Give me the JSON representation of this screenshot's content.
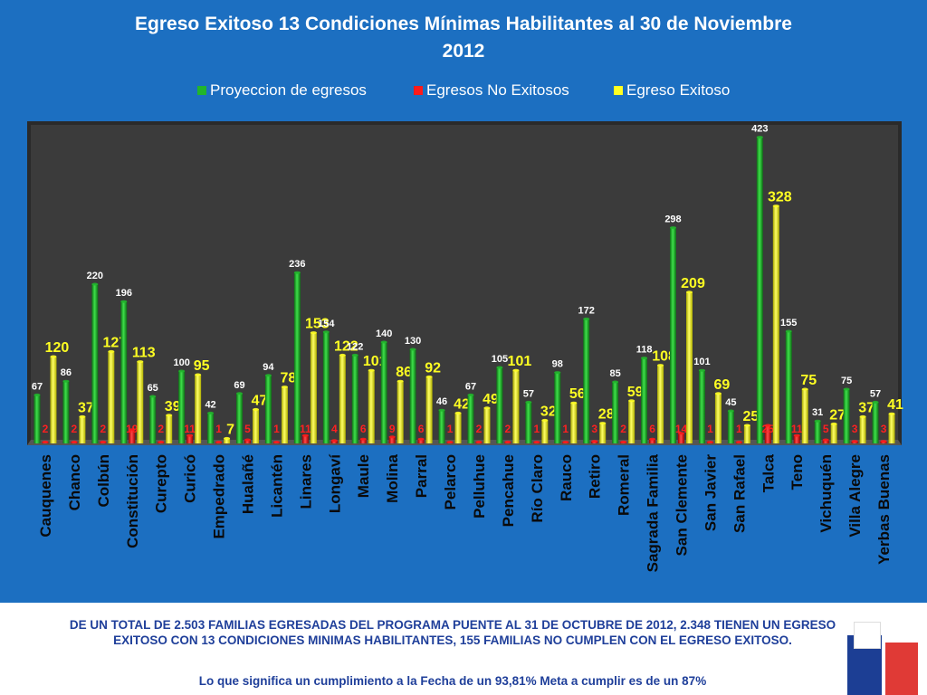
{
  "title_line1": "Egreso Exitoso 13 Condiciones Mínimas Habilitantes al 30 de Noviembre",
  "title_line2": "2012",
  "colors": {
    "background": "#1c6fc1",
    "plot": "#3a3a3a",
    "green": "#21b52c",
    "red": "#ff1a1a",
    "yellow": "#ffff22",
    "footer_text": "#1f3f9a"
  },
  "chart_data": {
    "type": "bar",
    "title": "Egreso Exitoso 13 Condiciones Mínimas Habilitantes al 30 de Noviembre 2012",
    "legend_position": "top",
    "ylim": [
      0,
      440
    ],
    "grid": false,
    "categories": [
      "Cauquenes",
      "Chanco",
      "Colbún",
      "Constitución",
      "Curepto",
      "Curicó",
      "Empedrado",
      "Hualañé",
      "Licantén",
      "Linares",
      "Longaví",
      "Maule",
      "Molina",
      "Parral",
      "Pelarco",
      "Pelluhue",
      "Pencahue",
      "Río Claro",
      "Rauco",
      "Retiro",
      "Romeral",
      "Sagrada Familia",
      "San Clemente",
      "San Javier",
      "San Rafael",
      "Talca",
      "Teno",
      "Vichuquén",
      "Villa Alegre",
      "Yerbas Buenas"
    ],
    "series": [
      {
        "name": "Proyeccion de egresos",
        "color": "#21b52c",
        "values": [
          67,
          86,
          220,
          196,
          65,
          100,
          42,
          69,
          94,
          236,
          154,
          122,
          140,
          130,
          46,
          67,
          105,
          57,
          98,
          172,
          85,
          118,
          298,
          101,
          45,
          423,
          155,
          31,
          75,
          57
        ]
      },
      {
        "name": "Egresos No Exitosos",
        "color": "#ff1a1a",
        "values": [
          2,
          2,
          2,
          19,
          2,
          11,
          1,
          5,
          1,
          11,
          4,
          6,
          9,
          6,
          1,
          2,
          2,
          1,
          1,
          3,
          2,
          6,
          14,
          1,
          1,
          25,
          11,
          5,
          3,
          3
        ]
      },
      {
        "name": "Egreso Exitoso",
        "color": "#ffff22",
        "values": [
          120,
          37,
          127,
          113,
          39,
          95,
          7,
          47,
          78,
          153,
          122,
          101,
          86,
          92,
          42,
          49,
          101,
          32,
          56,
          28,
          59,
          108,
          209,
          69,
          25,
          328,
          75,
          27,
          37,
          41
        ]
      }
    ]
  },
  "footer": {
    "line1": "DE UN TOTAL DE  2.503 FAMILIAS EGRESADAS DEL PROGRAMA PUENTE AL 31 DE OCTUBRE DE 2012, 2.348 TIENEN UN EGRESO EXITOSO CON 13 CONDICIONES MINIMAS HABILITANTES, 155 FAMILIAS NO CUMPLEN CON EL EGRESO EXITOSO.",
    "line2": "Lo que significa un cumplimiento a la Fecha de un 93,81% Meta a cumplir es de un 87%"
  }
}
